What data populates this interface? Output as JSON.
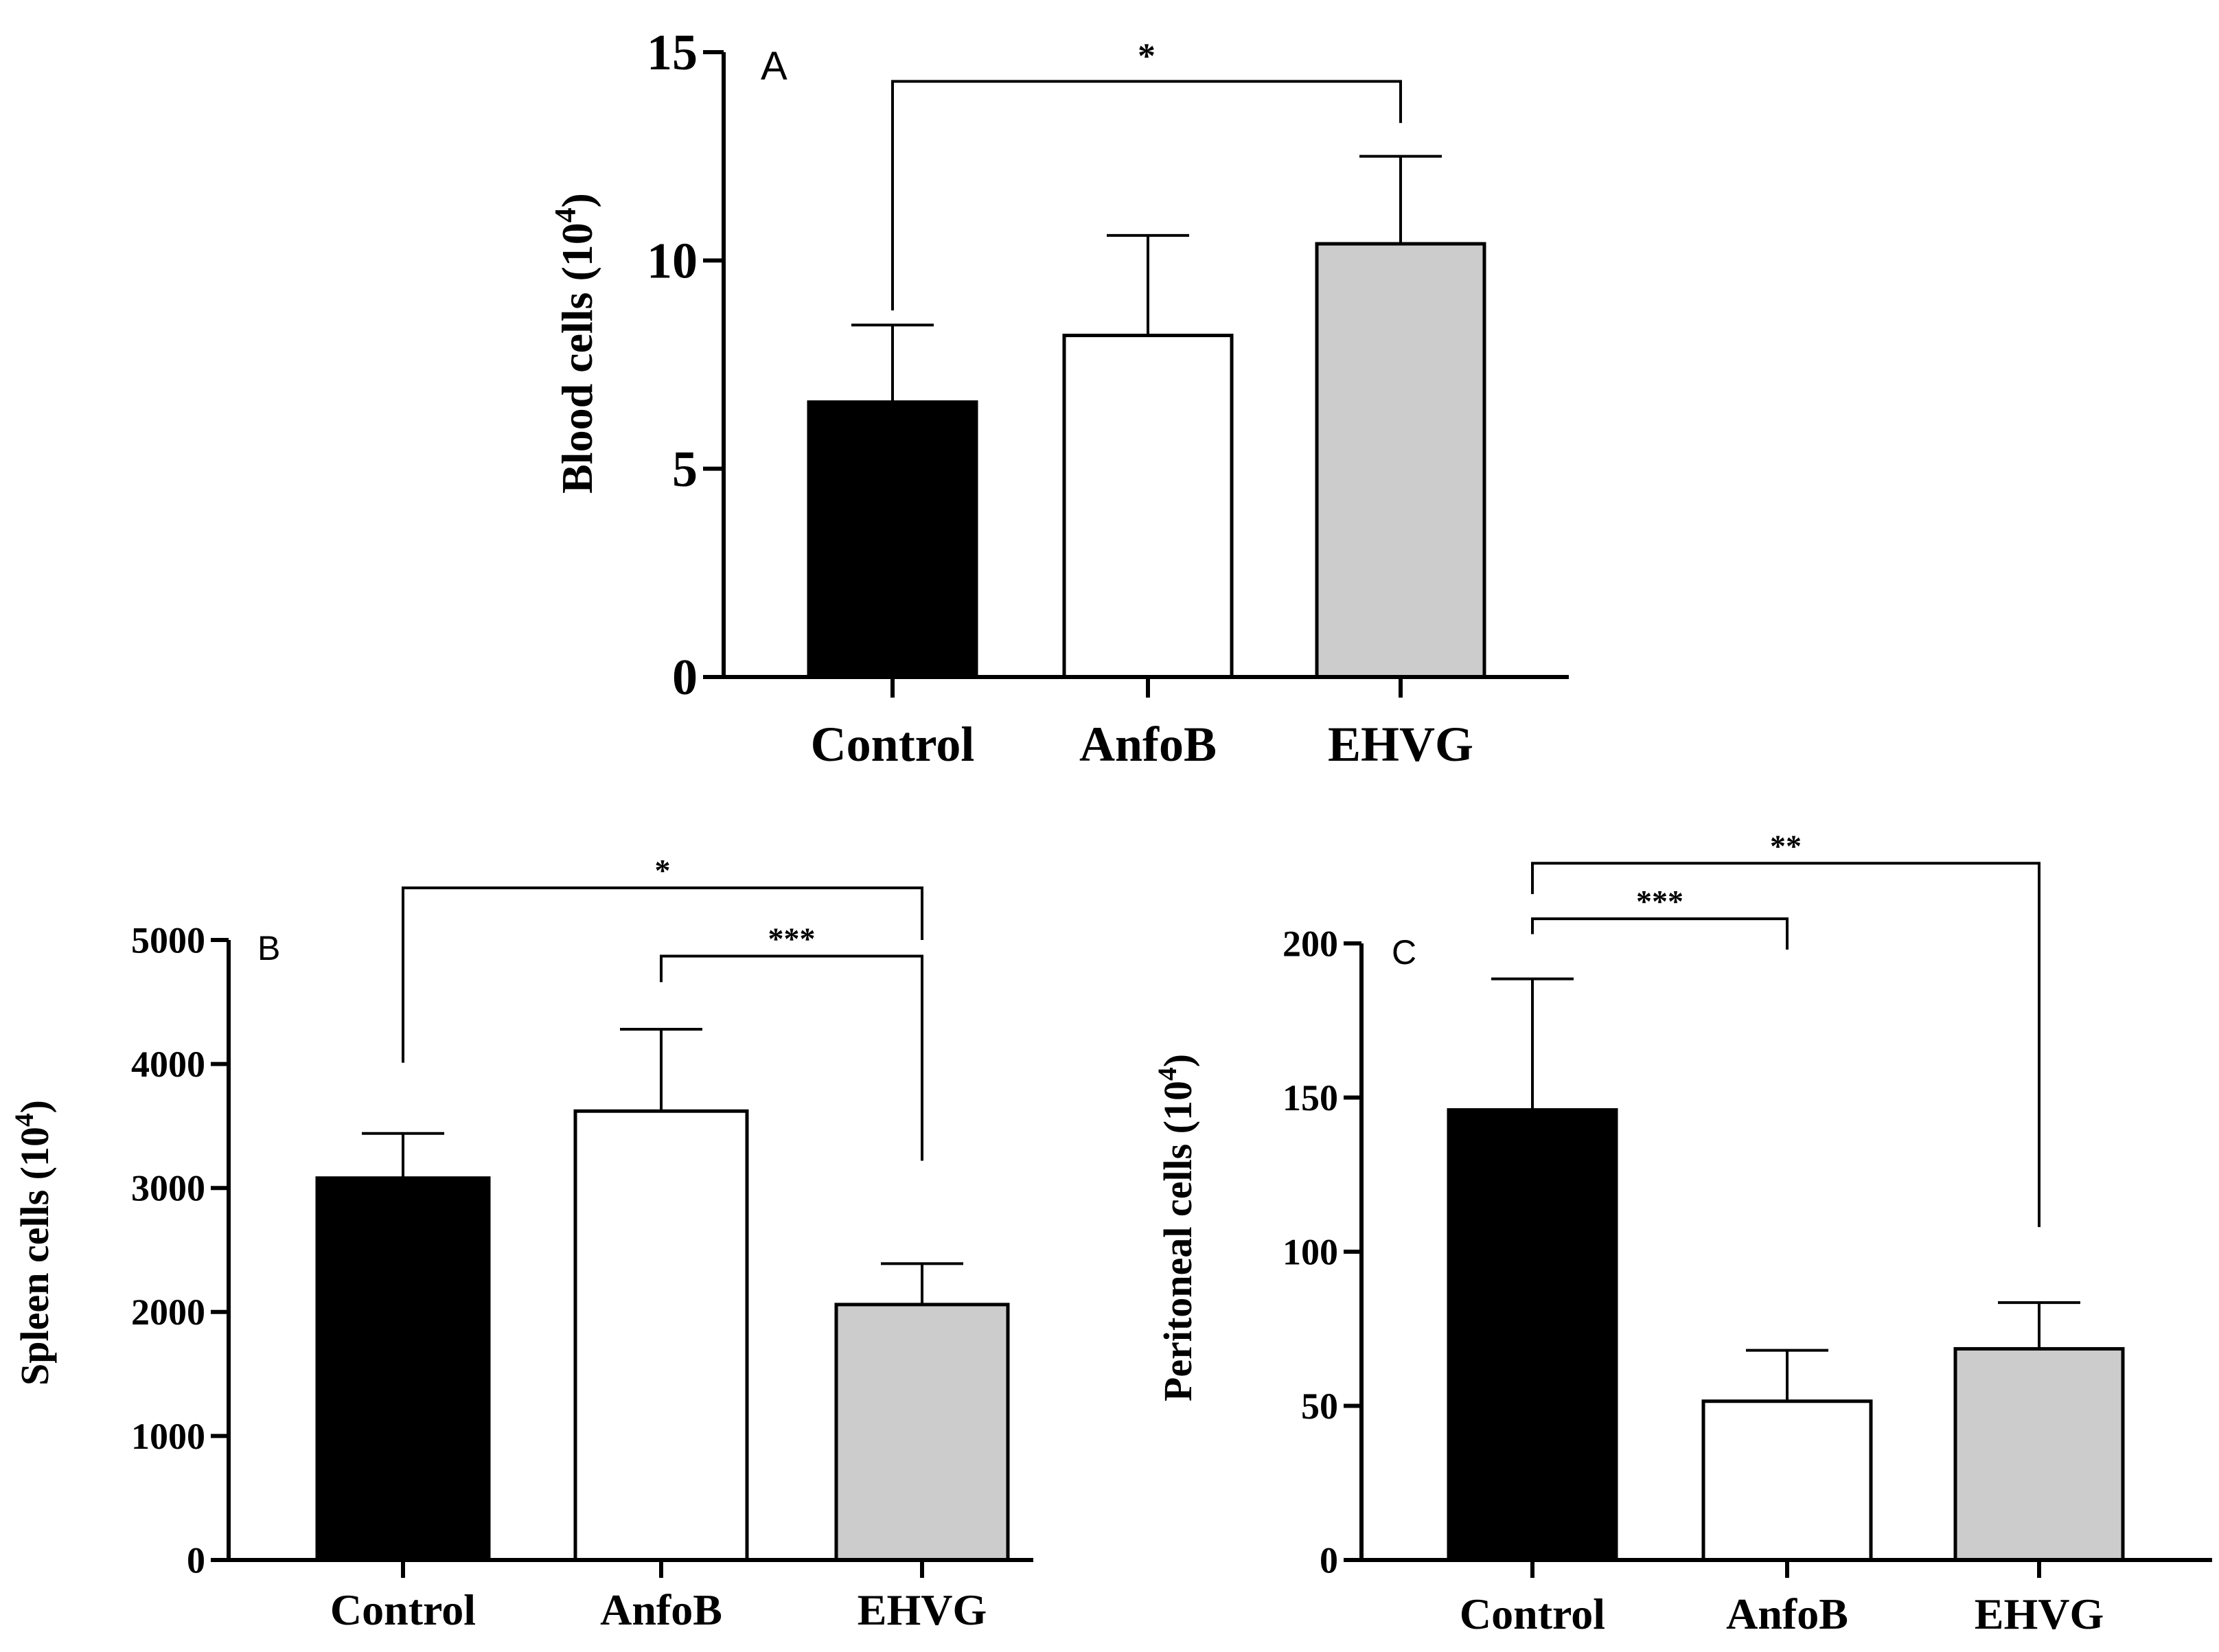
{
  "chart_data": [
    {
      "panel": "A",
      "type": "bar",
      "categories": [
        "Control",
        "AnfoB",
        "EHVG"
      ],
      "values": [
        6.6,
        8.2,
        10.4
      ],
      "errors": [
        1.85,
        2.4,
        2.1
      ],
      "colors": [
        "#000000",
        "#ffffff",
        "#cccccc"
      ],
      "ylabel_main": "Blood cells (10",
      "ylabel_sup": "4",
      "ylabel_end": ")",
      "ylim": [
        0,
        15
      ],
      "yticks": [
        0,
        5,
        10,
        15
      ],
      "significance": [
        {
          "from": 0,
          "to": 2,
          "label": "*",
          "y": 14.3,
          "left_end": 8.8,
          "right_end": 13.3
        }
      ]
    },
    {
      "panel": "B",
      "type": "bar",
      "categories": [
        "Control",
        "AnfoB",
        "EHVG"
      ],
      "values": [
        3080,
        3620,
        2060
      ],
      "errors": [
        360,
        660,
        330
      ],
      "colors": [
        "#000000",
        "#ffffff",
        "#cccccc"
      ],
      "ylabel_main": "Spleen cells (10",
      "ylabel_sup": "4",
      "ylabel_end": ")",
      "ylim": [
        0,
        5000
      ],
      "yticks": [
        0,
        1000,
        2000,
        3000,
        4000,
        5000
      ],
      "significance": [
        {
          "from": 0,
          "to": 2,
          "label": "*",
          "y": 5420,
          "left_end": 4010,
          "right_end": 5000
        },
        {
          "from": 1,
          "to": 2,
          "label": "***",
          "y": 4870,
          "left_end": 4660,
          "right_end": 3220
        }
      ]
    },
    {
      "panel": "C",
      "type": "bar",
      "categories": [
        "Control",
        "AnfoB",
        "EHVG"
      ],
      "values": [
        146,
        51.5,
        68.5
      ],
      "errors": [
        42.5,
        16.5,
        15
      ],
      "colors": [
        "#000000",
        "#ffffff",
        "#cccccc"
      ],
      "ylabel_main": "Peritoneal cells (10",
      "ylabel_sup": "4",
      "ylabel_end": ")",
      "ylim": [
        0,
        200
      ],
      "yticks": [
        0,
        50,
        100,
        150,
        200
      ],
      "significance": [
        {
          "from": 0,
          "to": 2,
          "label": "**",
          "y": 226,
          "left_end": 216,
          "right_end": 108
        },
        {
          "from": 0,
          "to": 1,
          "label": "***",
          "y": 208,
          "left_end": 203,
          "right_end": 198
        }
      ]
    }
  ]
}
